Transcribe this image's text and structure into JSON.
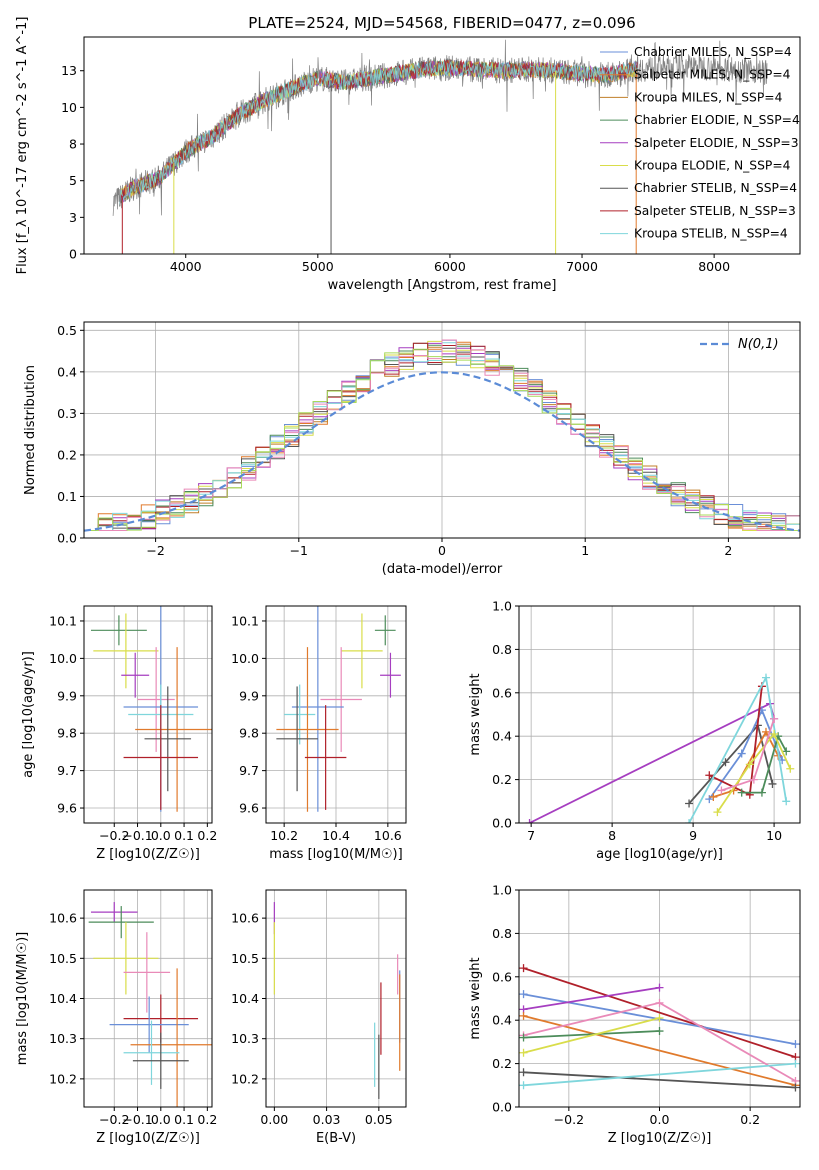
{
  "figure_title": "PLATE=2524, MJD=54568, FIBERID=0477, z=0.096",
  "palette": [
    "#6a8fd8",
    "#e07a2c",
    "#c07f2a",
    "#4c8c5a",
    "#a63ec0",
    "#d9dd4a",
    "#555555",
    "#b0202a",
    "#7fd6dc",
    "#e98ab8",
    "#a8d95b"
  ],
  "chart_data": [
    {
      "id": "spectrum",
      "type": "line",
      "title": "PLATE=2524, MJD=54568, FIBERID=0477, z=0.096",
      "xlabel": "wavelength [Angstrom, rest frame]",
      "ylabel": "Flux [f_λ 10^-17 erg cm^-2 s^-1 A^-1]",
      "xlim": [
        3230,
        8650
      ],
      "ylim": [
        0,
        14.8
      ],
      "xticks": [
        4000,
        5000,
        6000,
        7000,
        8000
      ],
      "yticks": [
        0.0,
        2.5,
        5.0,
        7.5,
        10.0,
        12.5
      ],
      "grid": false,
      "legend_position": "top-right",
      "series": [
        {
          "name": "Chabrier MILES, N_SSP=4",
          "color": "#6a8fd8"
        },
        {
          "name": "Salpeter MILES, N_SSP=4",
          "color": "#e07a2c"
        },
        {
          "name": "Kroupa MILES, N_SSP=4",
          "color": "#c07f2a"
        },
        {
          "name": "Chabrier ELODIE, N_SSP=4",
          "color": "#4c8c5a"
        },
        {
          "name": "Salpeter ELODIE, N_SSP=3",
          "color": "#a63ec0"
        },
        {
          "name": "Kroupa ELODIE, N_SSP=4",
          "color": "#d9dd4a"
        },
        {
          "name": "Chabrier STELIB, N_SSP=4",
          "color": "#555555"
        },
        {
          "name": "Salpeter STELIB, N_SSP=3",
          "color": "#b0202a"
        },
        {
          "name": "Kroupa STELIB, N_SSP=4",
          "color": "#7fd6dc"
        }
      ],
      "continuum": {
        "x": [
          3450,
          3600,
          3800,
          4000,
          4200,
          4400,
          4600,
          4800,
          5000,
          5200,
          5400,
          5600,
          5800,
          6000,
          6200,
          6400,
          6600,
          6800,
          7000,
          7200,
          7400,
          7600,
          7800,
          8000,
          8200,
          8400
        ],
        "y": [
          3.5,
          4.5,
          5.2,
          7.0,
          8.0,
          9.5,
          10.5,
          11.3,
          12.0,
          11.7,
          12.0,
          12.3,
          12.6,
          12.7,
          12.6,
          12.5,
          12.6,
          12.5,
          12.3,
          12.2,
          12.6,
          12.7,
          12.8,
          12.7,
          12.6,
          12.4
        ]
      },
      "model_range": [
        3500,
        7420
      ],
      "drop_lines": [
        {
          "x": 3520,
          "color": "#b0202a"
        },
        {
          "x": 3910,
          "color": "#d9dd4a"
        },
        {
          "x": 5100,
          "color": "#555555"
        },
        {
          "x": 6800,
          "color": "#d9dd4a"
        },
        {
          "x": 7410,
          "color": "#e07a2c"
        }
      ]
    },
    {
      "id": "residuals",
      "type": "line",
      "xlabel": "(data-model)/error",
      "ylabel": "Normed distribution",
      "xlim": [
        -2.5,
        2.5
      ],
      "ylim": [
        0,
        0.52
      ],
      "xticks": [
        -2,
        -1,
        0,
        1,
        2
      ],
      "yticks": [
        0.0,
        0.1,
        0.2,
        0.3,
        0.4,
        0.5
      ],
      "grid": true,
      "legend_position": "top-right",
      "reference": {
        "name": "N(0,1)",
        "mu": 0,
        "sigma": 1
      },
      "bin_width": 0.1
    },
    {
      "id": "age-vs-z",
      "type": "scatter",
      "xlabel": "Z [log10(Z/Z☉)]",
      "ylabel": "age [log10(age/yr)]",
      "xlim": [
        -0.33,
        0.22
      ],
      "ylim": [
        9.56,
        10.14
      ],
      "xticks": [
        -0.2,
        -0.1,
        0.0,
        0.1,
        0.2
      ],
      "yticks": [
        9.6,
        9.7,
        9.8,
        9.9,
        10.0,
        10.1
      ],
      "grid": true,
      "points": [
        {
          "x": -0.18,
          "y": 10.075,
          "xerr": 0.12,
          "yerr": 0.04,
          "color": "#4c8c5a"
        },
        {
          "x": -0.15,
          "y": 10.02,
          "xerr": 0.14,
          "yerr": 0.1,
          "color": "#d9dd4a"
        },
        {
          "x": -0.11,
          "y": 9.955,
          "xerr": 0.06,
          "yerr": 0.06,
          "color": "#a63ec0"
        },
        {
          "x": -0.02,
          "y": 9.89,
          "xerr": 0.08,
          "yerr": 0.14,
          "color": "#e98ab8"
        },
        {
          "x": 0.0,
          "y": 9.87,
          "xerr": 0.16,
          "yerr": 0.28,
          "color": "#6a8fd8"
        },
        {
          "x": 0.0,
          "y": 9.85,
          "xerr": 0.14,
          "yerr": 0.08,
          "color": "#7fd6dc"
        },
        {
          "x": 0.07,
          "y": 9.81,
          "xerr": 0.18,
          "yerr": 0.22,
          "color": "#e07a2c"
        },
        {
          "x": 0.03,
          "y": 9.785,
          "xerr": 0.1,
          "yerr": 0.14,
          "color": "#555555"
        },
        {
          "x": 0.0,
          "y": 9.735,
          "xerr": 0.16,
          "yerr": 0.14,
          "color": "#b0202a"
        }
      ]
    },
    {
      "id": "age-vs-mass",
      "type": "scatter",
      "xlabel": "mass [log10(M/M☉)]",
      "ylabel": "",
      "xlim": [
        10.13,
        10.67
      ],
      "ylim": [
        9.56,
        10.14
      ],
      "xticks": [
        10.2,
        10.4,
        10.6
      ],
      "yticks": [
        9.6,
        9.7,
        9.8,
        9.9,
        10.0,
        10.1
      ],
      "grid": true,
      "points": [
        {
          "x": 10.59,
          "y": 10.075,
          "xerr": 0.04,
          "yerr": 0.04,
          "color": "#4c8c5a"
        },
        {
          "x": 10.5,
          "y": 10.02,
          "xerr": 0.08,
          "yerr": 0.1,
          "color": "#d9dd4a"
        },
        {
          "x": 10.61,
          "y": 9.955,
          "xerr": 0.04,
          "yerr": 0.06,
          "color": "#a63ec0"
        },
        {
          "x": 10.42,
          "y": 9.89,
          "xerr": 0.08,
          "yerr": 0.14,
          "color": "#e98ab8"
        },
        {
          "x": 10.33,
          "y": 9.87,
          "xerr": 0.1,
          "yerr": 0.28,
          "color": "#6a8fd8"
        },
        {
          "x": 10.26,
          "y": 9.85,
          "xerr": 0.06,
          "yerr": 0.08,
          "color": "#7fd6dc"
        },
        {
          "x": 10.29,
          "y": 9.81,
          "xerr": 0.12,
          "yerr": 0.22,
          "color": "#e07a2c"
        },
        {
          "x": 10.25,
          "y": 9.785,
          "xerr": 0.08,
          "yerr": 0.14,
          "color": "#555555"
        },
        {
          "x": 10.36,
          "y": 9.735,
          "xerr": 0.08,
          "yerr": 0.14,
          "color": "#b0202a"
        }
      ]
    },
    {
      "id": "mass-weight-vs-age",
      "type": "line",
      "xlabel": "age [log10(age/yr)]",
      "ylabel": "mass weight",
      "xlim": [
        6.85,
        10.32
      ],
      "ylim": [
        0,
        1
      ],
      "xticks": [
        7,
        8,
        9,
        10
      ],
      "yticks": [
        0.0,
        0.2,
        0.4,
        0.6,
        0.8,
        1.0
      ],
      "grid": true,
      "series": [
        {
          "color": "#a63ec0",
          "points": [
            [
              6.98,
              0.0
            ],
            [
              9.95,
              0.55
            ],
            [
              10.0,
              0.48
            ]
          ]
        },
        {
          "color": "#555555",
          "points": [
            [
              8.95,
              0.09
            ],
            [
              9.4,
              0.28
            ],
            [
              9.8,
              0.45
            ],
            [
              9.98,
              0.18
            ]
          ]
        },
        {
          "color": "#6a8fd8",
          "points": [
            [
              9.2,
              0.11
            ],
            [
              9.6,
              0.32
            ],
            [
              9.85,
              0.52
            ],
            [
              10.1,
              0.29
            ]
          ]
        },
        {
          "color": "#e07a2c",
          "points": [
            [
              9.25,
              0.12
            ],
            [
              9.5,
              0.15
            ],
            [
              9.9,
              0.42
            ],
            [
              10.05,
              0.31
            ]
          ]
        },
        {
          "color": "#b0202a",
          "points": [
            [
              9.2,
              0.22
            ],
            [
              9.7,
              0.13
            ],
            [
              9.85,
              0.63
            ]
          ]
        },
        {
          "color": "#7fd6dc",
          "points": [
            [
              8.95,
              0.0
            ],
            [
              9.9,
              0.67
            ],
            [
              10.15,
              0.1
            ]
          ]
        },
        {
          "color": "#4c8c5a",
          "points": [
            [
              9.6,
              0.14
            ],
            [
              9.85,
              0.14
            ],
            [
              10.05,
              0.4
            ],
            [
              10.15,
              0.33
            ]
          ]
        },
        {
          "color": "#d9dd4a",
          "points": [
            [
              9.3,
              0.05
            ],
            [
              9.7,
              0.27
            ],
            [
              10.0,
              0.41
            ],
            [
              10.2,
              0.25
            ]
          ]
        },
        {
          "color": "#e98ab8",
          "points": [
            [
              9.35,
              0.15
            ],
            [
              9.75,
              0.2
            ],
            [
              10.0,
              0.48
            ]
          ]
        }
      ]
    },
    {
      "id": "mass-vs-z",
      "type": "scatter",
      "xlabel": "Z [log10(Z/Z☉)]",
      "ylabel": "mass [log10(M/M☉)]",
      "xlim": [
        -0.33,
        0.22
      ],
      "ylim": [
        10.13,
        10.67
      ],
      "xticks": [
        -0.2,
        -0.1,
        0.0,
        0.1,
        0.2
      ],
      "yticks": [
        10.2,
        10.3,
        10.4,
        10.5,
        10.6
      ],
      "grid": true,
      "points": [
        {
          "x": -0.2,
          "y": 10.615,
          "xerr": 0.1,
          "yerr": 0.025,
          "color": "#a63ec0"
        },
        {
          "x": -0.17,
          "y": 10.59,
          "xerr": 0.14,
          "yerr": 0.04,
          "color": "#4c8c5a"
        },
        {
          "x": -0.15,
          "y": 10.5,
          "xerr": 0.14,
          "yerr": 0.09,
          "color": "#d9dd4a"
        },
        {
          "x": -0.06,
          "y": 10.465,
          "xerr": 0.1,
          "yerr": 0.1,
          "color": "#e98ab8"
        },
        {
          "x": 0.0,
          "y": 10.35,
          "xerr": 0.16,
          "yerr": 0.06,
          "color": "#b0202a"
        },
        {
          "x": -0.05,
          "y": 10.335,
          "xerr": 0.17,
          "yerr": 0.07,
          "color": "#6a8fd8"
        },
        {
          "x": 0.07,
          "y": 10.285,
          "xerr": 0.2,
          "yerr": 0.19,
          "color": "#e07a2c"
        },
        {
          "x": -0.04,
          "y": 10.265,
          "xerr": 0.12,
          "yerr": 0.08,
          "color": "#7fd6dc"
        },
        {
          "x": 0.0,
          "y": 10.245,
          "xerr": 0.12,
          "yerr": 0.07,
          "color": "#555555"
        }
      ]
    },
    {
      "id": "mass-vs-ebv",
      "type": "scatter",
      "xlabel": "E(B-V)",
      "ylabel": "",
      "xlim": [
        -0.004,
        0.063
      ],
      "ylim": [
        10.13,
        10.67
      ],
      "xticks": [
        0.0,
        0.025,
        0.05
      ],
      "yticks": [
        10.2,
        10.3,
        10.4,
        10.5,
        10.6
      ],
      "grid": true,
      "points": [
        {
          "x": 0.0,
          "y": 10.6,
          "xerr": 0,
          "yerr": 0.04,
          "color": "#a63ec0"
        },
        {
          "x": 0.0,
          "y": 10.5,
          "xerr": 0,
          "yerr": 0.09,
          "color": "#d9dd4a"
        },
        {
          "x": 0.059,
          "y": 10.46,
          "xerr": 0,
          "yerr": 0.05,
          "color": "#e98ab8"
        },
        {
          "x": 0.06,
          "y": 10.38,
          "xerr": 0,
          "yerr": 0.09,
          "color": "#6a8fd8"
        },
        {
          "x": 0.051,
          "y": 10.35,
          "xerr": 0,
          "yerr": 0.09,
          "color": "#b0202a"
        },
        {
          "x": 0.06,
          "y": 10.34,
          "xerr": 0,
          "yerr": 0.12,
          "color": "#e07a2c"
        },
        {
          "x": 0.048,
          "y": 10.26,
          "xerr": 0,
          "yerr": 0.08,
          "color": "#7fd6dc"
        },
        {
          "x": 0.05,
          "y": 10.23,
          "xerr": 0,
          "yerr": 0.08,
          "color": "#555555"
        }
      ]
    },
    {
      "id": "mass-weight-vs-z",
      "type": "line",
      "xlabel": "Z [log10(Z/Z☉)]",
      "ylabel": "mass weight",
      "xlim": [
        -0.31,
        0.31
      ],
      "ylim": [
        0,
        1
      ],
      "xticks": [
        -0.2,
        0.0,
        0.2
      ],
      "yticks": [
        0.0,
        0.2,
        0.4,
        0.6,
        0.8,
        1.0
      ],
      "grid": true,
      "series": [
        {
          "color": "#b0202a",
          "points": [
            [
              -0.3,
              0.64
            ],
            [
              0.3,
              0.23
            ]
          ]
        },
        {
          "color": "#6a8fd8",
          "points": [
            [
              -0.3,
              0.52
            ],
            [
              0.3,
              0.29
            ]
          ]
        },
        {
          "color": "#a63ec0",
          "points": [
            [
              -0.3,
              0.45
            ],
            [
              0.0,
              0.55
            ]
          ]
        },
        {
          "color": "#e07a2c",
          "points": [
            [
              -0.3,
              0.42
            ],
            [
              0.3,
              0.1
            ]
          ]
        },
        {
          "color": "#e98ab8",
          "points": [
            [
              -0.3,
              0.33
            ],
            [
              0.0,
              0.48
            ],
            [
              0.3,
              0.12
            ]
          ]
        },
        {
          "color": "#4c8c5a",
          "points": [
            [
              -0.3,
              0.32
            ],
            [
              0.0,
              0.35
            ]
          ]
        },
        {
          "color": "#d9dd4a",
          "points": [
            [
              -0.3,
              0.25
            ],
            [
              0.0,
              0.41
            ]
          ]
        },
        {
          "color": "#555555",
          "points": [
            [
              -0.3,
              0.16
            ],
            [
              0.3,
              0.09
            ]
          ]
        },
        {
          "color": "#7fd6dc",
          "points": [
            [
              -0.3,
              0.1
            ],
            [
              0.3,
              0.2
            ]
          ]
        }
      ]
    }
  ]
}
